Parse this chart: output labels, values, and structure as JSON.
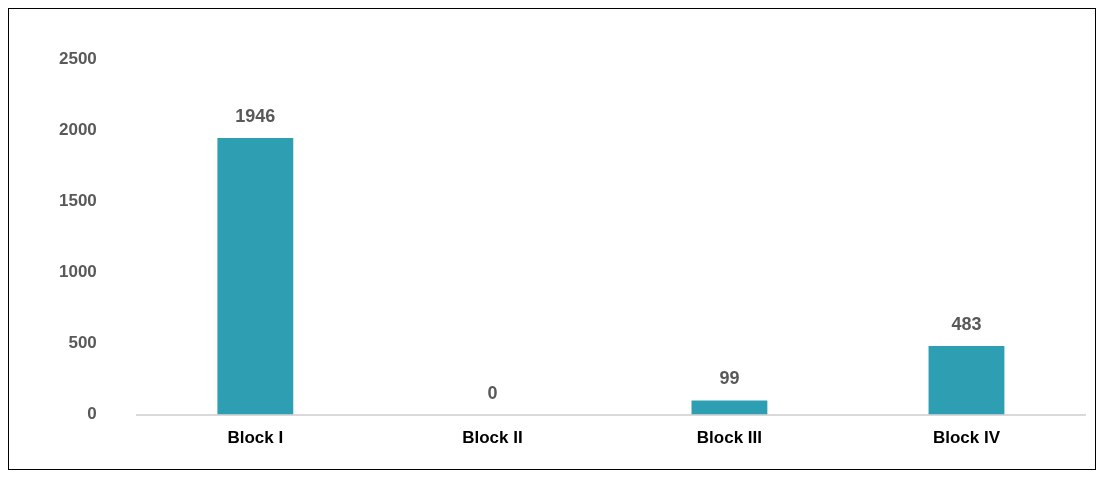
{
  "chart_data": {
    "type": "bar",
    "categories": [
      "Block I",
      "Block II",
      "Block III",
      "Block IV"
    ],
    "values": [
      1946,
      0,
      99,
      483
    ],
    "color": "#2e9fb2",
    "ylim": [
      0,
      2500
    ],
    "yticks": [
      0,
      500,
      1000,
      1500,
      2000,
      2500
    ],
    "grid": false,
    "data_labels": true
  }
}
